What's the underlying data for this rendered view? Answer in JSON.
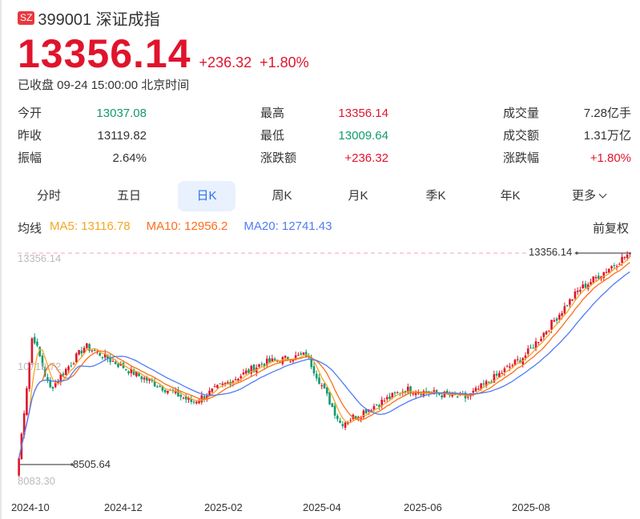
{
  "header": {
    "exchange_badge": "SZ",
    "title": "399001 深证成指",
    "price": "13356.14",
    "change": "+236.32",
    "change_pct": "+1.80%",
    "status": "已收盘 09-24 15:00:00 北京时间"
  },
  "stats": [
    {
      "label": "今开",
      "value": "13037.08",
      "color": "green"
    },
    {
      "label": "昨收",
      "value": "13119.82",
      "color": "dark"
    },
    {
      "label": "振幅",
      "value": "2.64%",
      "color": "dark"
    },
    {
      "label": "最高",
      "value": "13356.14",
      "color": "red"
    },
    {
      "label": "最低",
      "value": "13009.64",
      "color": "green"
    },
    {
      "label": "涨跌额",
      "value": "+236.32",
      "color": "red"
    },
    {
      "label": "成交量",
      "value": "7.28亿手",
      "color": "dark"
    },
    {
      "label": "成交额",
      "value": "1.31万亿",
      "color": "dark"
    },
    {
      "label": "涨跌幅",
      "value": "+1.80%",
      "color": "red"
    }
  ],
  "tabs": [
    {
      "label": "分时",
      "active": false
    },
    {
      "label": "五日",
      "active": false
    },
    {
      "label": "日K",
      "active": true
    },
    {
      "label": "周K",
      "active": false
    },
    {
      "label": "月K",
      "active": false
    },
    {
      "label": "季K",
      "active": false
    },
    {
      "label": "年K",
      "active": false
    },
    {
      "label": "更多",
      "active": false
    }
  ],
  "ma_legend": {
    "title": "均线",
    "ma5": "MA5: 13116.78",
    "ma10": "MA10: 12956.2",
    "ma20": "MA20: 12741.43"
  },
  "adjust_mode": "前复权",
  "colors": {
    "up": "#e0142c",
    "down": "#119a6e",
    "ma5": "#f5a623",
    "ma10": "#ff6d1a",
    "ma20": "#4e7cf6",
    "accent": "#2d6ff0"
  },
  "chart_data": {
    "type": "candlestick",
    "title": "399001 深证成指 日K",
    "x_ticks": [
      "2024-10",
      "2024-12",
      "2025-02",
      "2025-04",
      "2025-06",
      "2025-08"
    ],
    "y_labels": [
      "13356.14",
      "10719.72",
      "8083.30"
    ],
    "y_range": [
      8083.3,
      13356.14
    ],
    "max_marker": "13356.14",
    "min_marker": "8505.64",
    "ma_latest": {
      "MA5": 13116.78,
      "MA10": 12956.2,
      "MA20": 12741.43
    },
    "approx_close_series": [
      {
        "x": "2024-09-30",
        "close": 8600
      },
      {
        "x": "2024-10-08",
        "close": 11500
      },
      {
        "x": "2024-10-18",
        "close": 10200
      },
      {
        "x": "2024-11-08",
        "close": 11200
      },
      {
        "x": "2024-12-10",
        "close": 10500
      },
      {
        "x": "2025-01-10",
        "close": 9900
      },
      {
        "x": "2025-02-20",
        "close": 10800
      },
      {
        "x": "2025-03-18",
        "close": 11000
      },
      {
        "x": "2025-04-07",
        "close": 9400
      },
      {
        "x": "2025-05-15",
        "close": 10200
      },
      {
        "x": "2025-06-20",
        "close": 10000
      },
      {
        "x": "2025-07-25",
        "close": 11000
      },
      {
        "x": "2025-08-25",
        "close": 12500
      },
      {
        "x": "2025-09-24",
        "close": 13356.14
      }
    ]
  }
}
